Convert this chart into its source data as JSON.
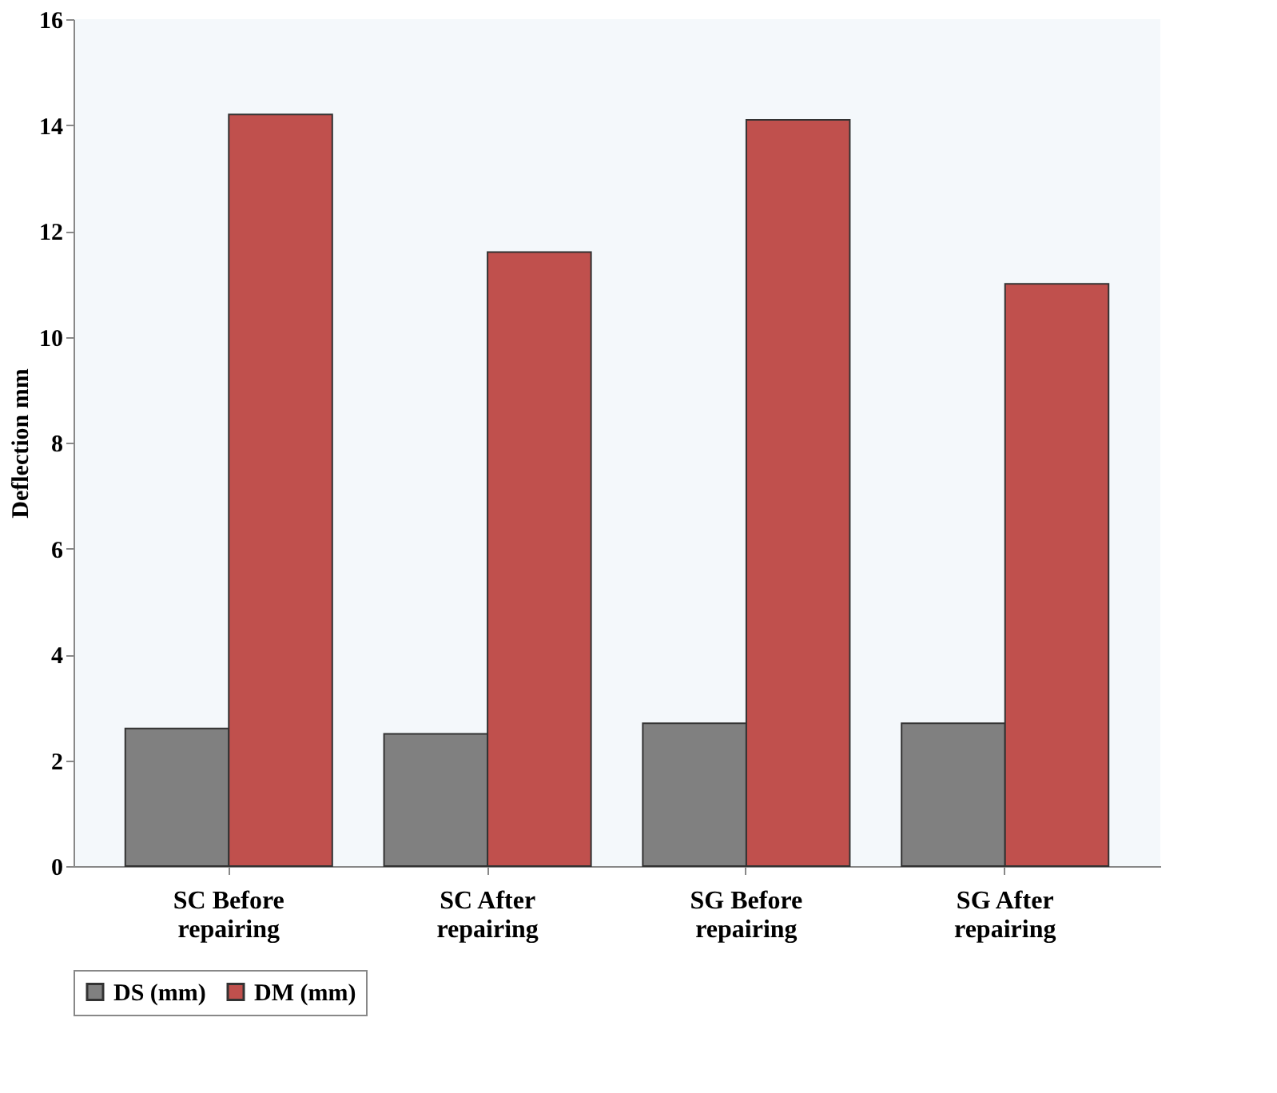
{
  "chart_data": {
    "type": "bar",
    "ylabel": "Deflection mm",
    "categories": [
      "SC Before repairing",
      "SC After repairing",
      "SG Before repairing",
      "SG After repairing"
    ],
    "series": [
      {
        "name": "DS (mm)",
        "color": "#808080",
        "values": [
          2.6,
          2.5,
          2.7,
          2.7
        ]
      },
      {
        "name": "DM (mm)",
        "color": "#c0504d",
        "values": [
          14.2,
          11.6,
          14.1,
          11.0
        ]
      }
    ],
    "ylim": [
      0,
      16
    ],
    "yticks": [
      0,
      2,
      4,
      6,
      8,
      10,
      12,
      14,
      16
    ],
    "grid": false,
    "legend": "bottom"
  }
}
